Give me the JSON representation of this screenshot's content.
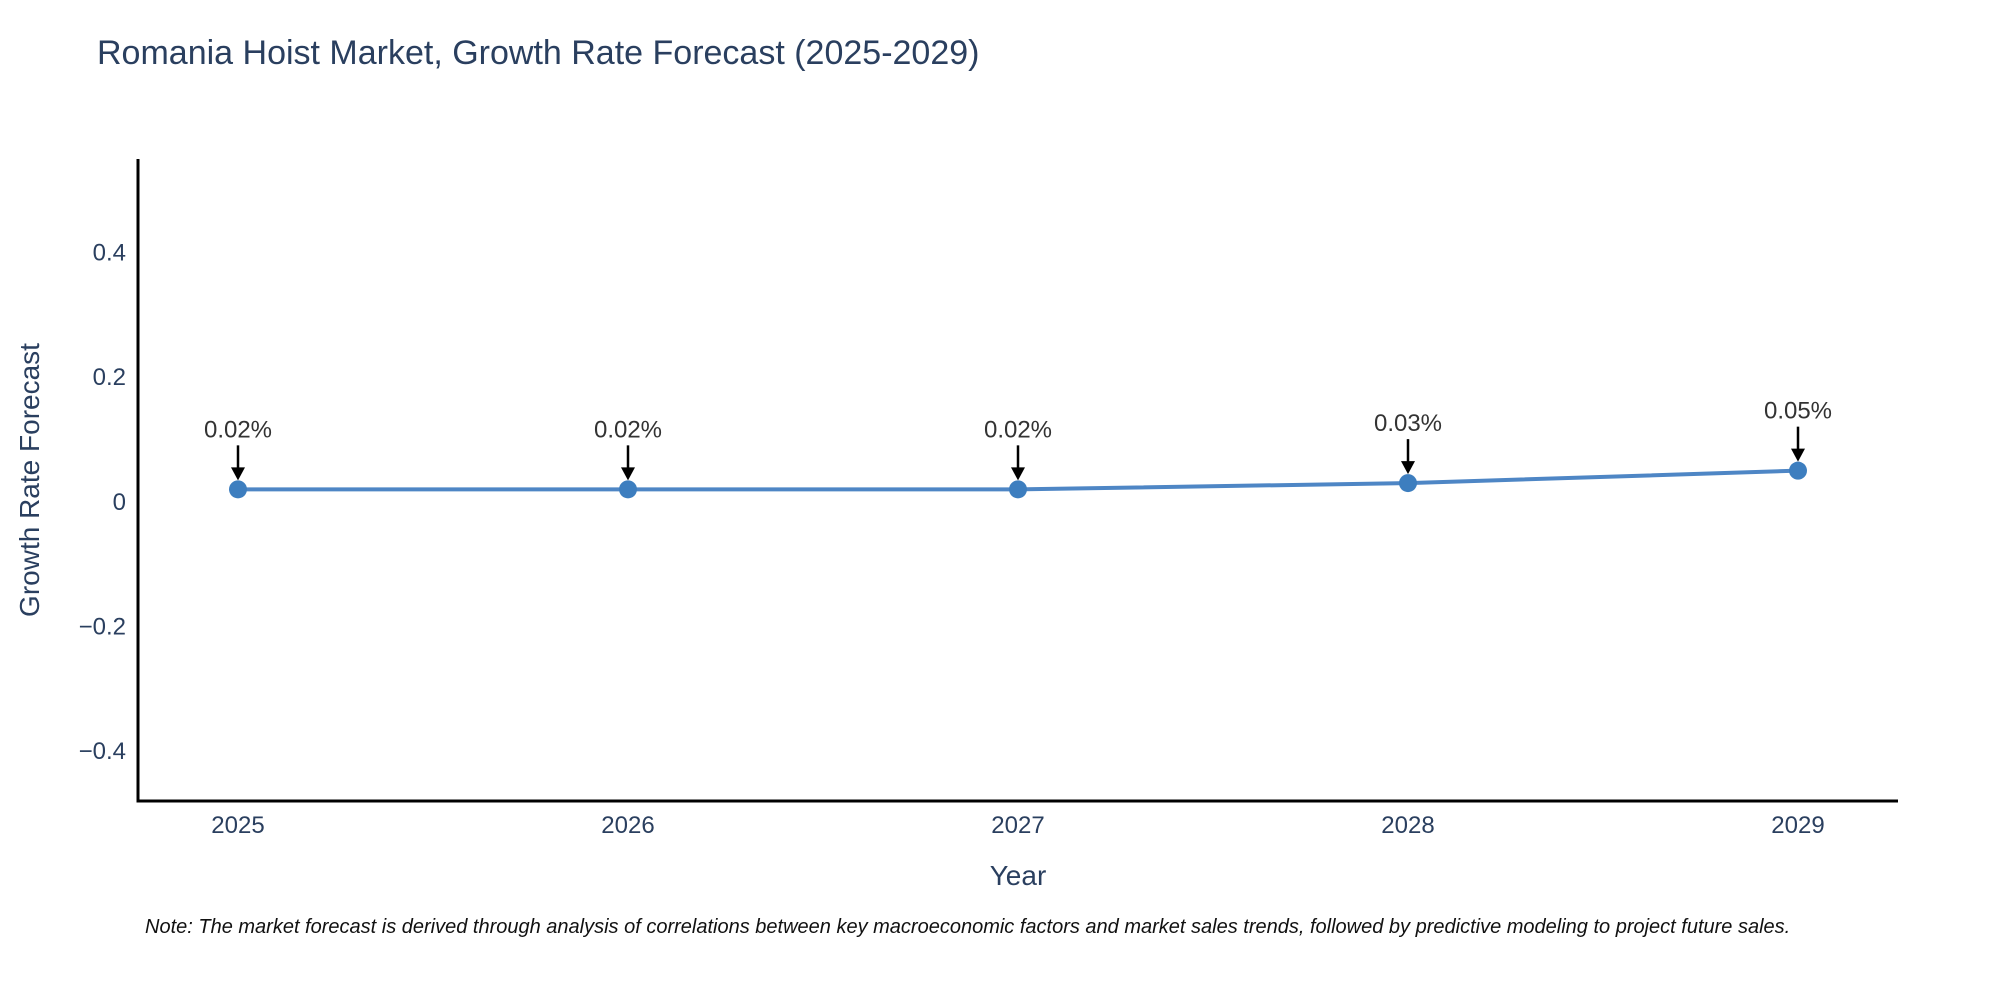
{
  "chart": {
    "title": "Romania Hoist Market, Growth Rate Forecast (2025-2029)",
    "note": "Note: The market forecast is derived through analysis of correlations between key macroeconomic factors and market sales trends, followed by predictive modeling to project future sales."
  },
  "chart_data": {
    "type": "line",
    "title": "Romania Hoist Market, Growth Rate Forecast (2025-2029)",
    "xlabel": "Year",
    "ylabel": "Growth Rate Forecast",
    "categories": [
      "2025",
      "2026",
      "2027",
      "2028",
      "2029"
    ],
    "values": [
      0.02,
      0.02,
      0.02,
      0.03,
      0.05
    ],
    "point_labels": [
      "0.02%",
      "0.02%",
      "0.02%",
      "0.03%",
      "0.05%"
    ],
    "y_ticks": [
      0.4,
      0.2,
      0,
      -0.2,
      -0.4
    ],
    "ylim": [
      -0.48,
      0.55
    ],
    "grid": false,
    "legend": false,
    "annotations_style": "down-arrow-to-point",
    "colors": {
      "line": "#4e86c5",
      "marker": "#3d7ebf",
      "axis_line": "#000000",
      "tick_text": "#2a3f5f",
      "annotation_text": "#333333",
      "arrow": "#000000"
    }
  }
}
